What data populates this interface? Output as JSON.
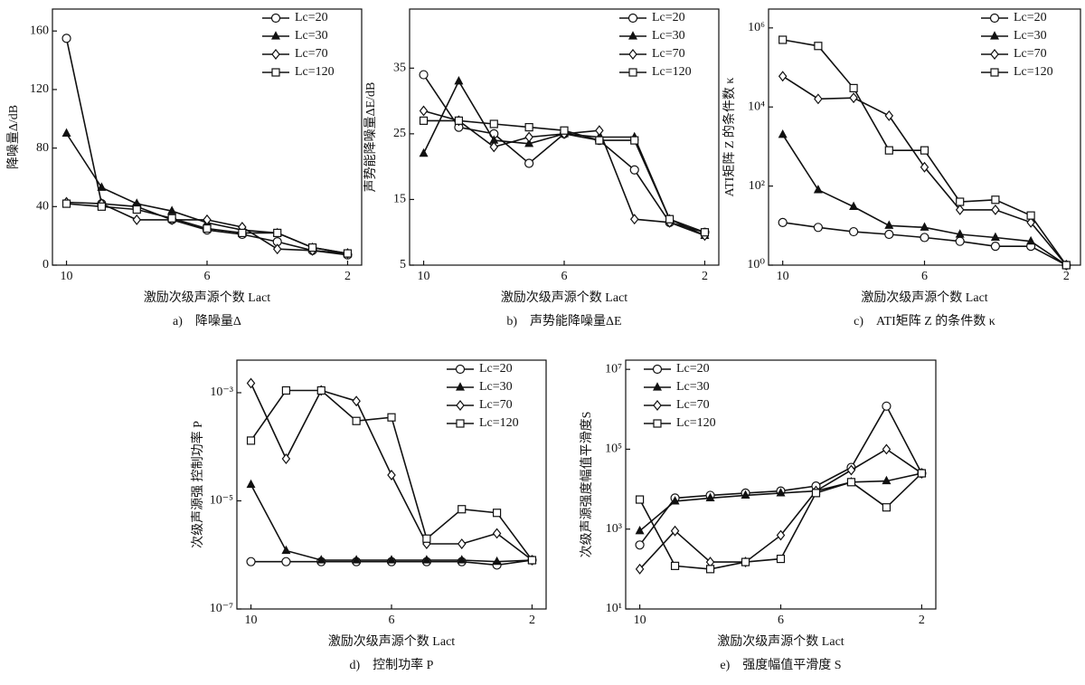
{
  "chart_data": [
    {
      "type": "line",
      "ylabel": "降噪量Δ/dB",
      "xlabel": "激励次级声源个数 Lact",
      "caption": "a)　降噪量Δ",
      "x": [
        10,
        9,
        8,
        7,
        6,
        5,
        4,
        3,
        2
      ],
      "xlim": [
        10.4,
        1.6
      ],
      "xticks": [
        10,
        6,
        2
      ],
      "ylim": [
        0,
        175
      ],
      "yticks": [
        0,
        40,
        80,
        120,
        160
      ],
      "legend": "upper right",
      "series": [
        {
          "name": "Lc=20",
          "color": "#111111",
          "marker": "circle",
          "values": [
            155,
            42,
            40,
            31,
            24,
            21,
            16,
            10,
            7
          ]
        },
        {
          "name": "Lc=30",
          "color": "#111111",
          "marker": "triangle",
          "values": [
            90,
            53,
            42,
            37,
            29,
            24,
            22,
            12,
            8
          ]
        },
        {
          "name": "Lc=70",
          "color": "#111111",
          "marker": "diamond",
          "values": [
            43,
            42,
            31,
            31,
            31,
            26,
            11,
            10,
            8
          ]
        },
        {
          "name": "Lc=120",
          "color": "#111111",
          "marker": "square",
          "values": [
            42,
            40,
            38,
            32,
            25,
            22,
            22,
            12,
            8
          ]
        }
      ]
    },
    {
      "type": "line",
      "ylabel": "声势能降噪量ΔE/dB",
      "xlabel": "激励次级声源个数 Lact",
      "caption": "b)　声势能降噪量ΔE",
      "x": [
        10,
        9,
        8,
        7,
        6,
        5,
        4,
        3,
        2
      ],
      "xlim": [
        10.4,
        1.6
      ],
      "xticks": [
        10,
        6,
        2
      ],
      "ylim": [
        5,
        44
      ],
      "yticks": [
        5,
        15,
        25,
        35
      ],
      "legend": "upper right",
      "series": [
        {
          "name": "Lc=20",
          "color": "#111111",
          "marker": "circle",
          "values": [
            34,
            26,
            25,
            20.5,
            25,
            24,
            19.5,
            11.5,
            10
          ]
        },
        {
          "name": "Lc=30",
          "color": "#111111",
          "marker": "triangle",
          "values": [
            22,
            33,
            24,
            23.5,
            25,
            24.5,
            24.5,
            12,
            9.5
          ]
        },
        {
          "name": "Lc=70",
          "color": "#111111",
          "marker": "diamond",
          "values": [
            28.5,
            27,
            23,
            24.5,
            25,
            25.5,
            12,
            11.5,
            9.5
          ]
        },
        {
          "name": "Lc=120",
          "color": "#111111",
          "marker": "square",
          "values": [
            27,
            27,
            26.5,
            26,
            25.5,
            24,
            24,
            12,
            10
          ]
        }
      ]
    },
    {
      "type": "line",
      "ylabel": "ATI矩阵 Z 的条件数 κ",
      "xlabel": "激励次级声源个数 Lact",
      "caption": "c)　ATI矩阵 Z 的条件数 κ",
      "x": [
        10,
        9,
        8,
        7,
        6,
        5,
        4,
        3,
        2
      ],
      "xlim": [
        10.4,
        1.6
      ],
      "xticks": [
        10,
        6,
        2
      ],
      "yscale": "log",
      "ylim": [
        1,
        3000000
      ],
      "yticks": [
        {
          "value": 1,
          "label": "10⁰"
        },
        {
          "value": 100,
          "label": "10²"
        },
        {
          "value": 10000,
          "label": "10⁴"
        },
        {
          "value": 1000000,
          "label": "10⁶"
        }
      ],
      "legend": "upper right",
      "series": [
        {
          "name": "Lc=20",
          "color": "#111111",
          "marker": "circle",
          "values": [
            12,
            9,
            7,
            6,
            5,
            4,
            3,
            3,
            1
          ]
        },
        {
          "name": "Lc=30",
          "color": "#111111",
          "marker": "triangle",
          "values": [
            2000,
            80,
            30,
            10,
            9,
            6,
            5,
            4,
            1
          ]
        },
        {
          "name": "Lc=70",
          "color": "#111111",
          "marker": "diamond",
          "values": [
            60000,
            16000,
            17000,
            6000,
            300,
            25,
            25,
            12,
            1
          ]
        },
        {
          "name": "Lc=120",
          "color": "#111111",
          "marker": "square",
          "values": [
            500000,
            350000,
            30000,
            800,
            800,
            40,
            45,
            18,
            1
          ]
        }
      ]
    },
    {
      "type": "line",
      "ylabel": "次级声源强 控制功率 P",
      "xlabel": "激励次级声源个数 Lact",
      "caption": "d)　控制功率 P",
      "x": [
        10,
        9,
        8,
        7,
        6,
        5,
        4,
        3,
        2
      ],
      "xlim": [
        10.4,
        1.6
      ],
      "xticks": [
        10,
        6,
        2
      ],
      "yscale": "log",
      "ylim": [
        1e-07,
        0.004
      ],
      "yticks": [
        {
          "value": 1e-07,
          "label": "10⁻⁷"
        },
        {
          "value": 1e-05,
          "label": "10⁻⁵"
        },
        {
          "value": 0.001,
          "label": "10⁻³"
        }
      ],
      "legend": "upper right",
      "series": [
        {
          "name": "Lc=20",
          "color": "#111111",
          "marker": "circle",
          "values": [
            7.5e-07,
            7.5e-07,
            7.5e-07,
            7.5e-07,
            7.5e-07,
            7.5e-07,
            7.5e-07,
            6.5e-07,
            8e-07
          ]
        },
        {
          "name": "Lc=30",
          "color": "#111111",
          "marker": "triangle",
          "values": [
            2e-05,
            1.2e-06,
            8e-07,
            8e-07,
            8e-07,
            8e-07,
            8e-07,
            7.5e-07,
            8e-07
          ]
        },
        {
          "name": "Lc=70",
          "color": "#111111",
          "marker": "diamond",
          "values": [
            0.0015,
            6e-05,
            0.0011,
            0.0007,
            3e-05,
            1.6e-06,
            1.6e-06,
            2.5e-06,
            8e-07
          ]
        },
        {
          "name": "Lc=120",
          "color": "#111111",
          "marker": "square",
          "values": [
            0.00013,
            0.0011,
            0.0011,
            0.0003,
            0.00035,
            2e-06,
            7e-06,
            6e-06,
            8e-07
          ]
        }
      ]
    },
    {
      "type": "line",
      "ylabel": "次级声源强度幅值平滑度S",
      "xlabel": "激励次级声源个数 Lact",
      "caption": "e)　强度幅值平滑度 S",
      "x": [
        10,
        9,
        8,
        7,
        6,
        5,
        4,
        3,
        2
      ],
      "xlim": [
        10.4,
        1.6
      ],
      "xticks": [
        10,
        6,
        2
      ],
      "yscale": "log",
      "ylim": [
        10,
        17000000
      ],
      "yticks": [
        {
          "value": 10,
          "label": "10¹"
        },
        {
          "value": 1000,
          "label": "10³"
        },
        {
          "value": 100000,
          "label": "10⁵"
        },
        {
          "value": 10000000,
          "label": "10⁷"
        }
      ],
      "legend": "upper left",
      "series": [
        {
          "name": "Lc=20",
          "color": "#111111",
          "marker": "circle",
          "values": [
            400,
            6000,
            7000,
            8000,
            9000,
            12000,
            35000,
            1200000,
            25000
          ]
        },
        {
          "name": "Lc=30",
          "color": "#111111",
          "marker": "triangle",
          "values": [
            900,
            5000,
            6000,
            7000,
            8000,
            9000,
            15000,
            16000,
            25000
          ]
        },
        {
          "name": "Lc=70",
          "color": "#111111",
          "marker": "diamond",
          "values": [
            100,
            900,
            150,
            150,
            700,
            9000,
            30000,
            100000,
            25000
          ]
        },
        {
          "name": "Lc=120",
          "color": "#111111",
          "marker": "square",
          "values": [
            5500,
            120,
            100,
            150,
            180,
            8000,
            15000,
            3500,
            25000
          ]
        }
      ]
    }
  ]
}
